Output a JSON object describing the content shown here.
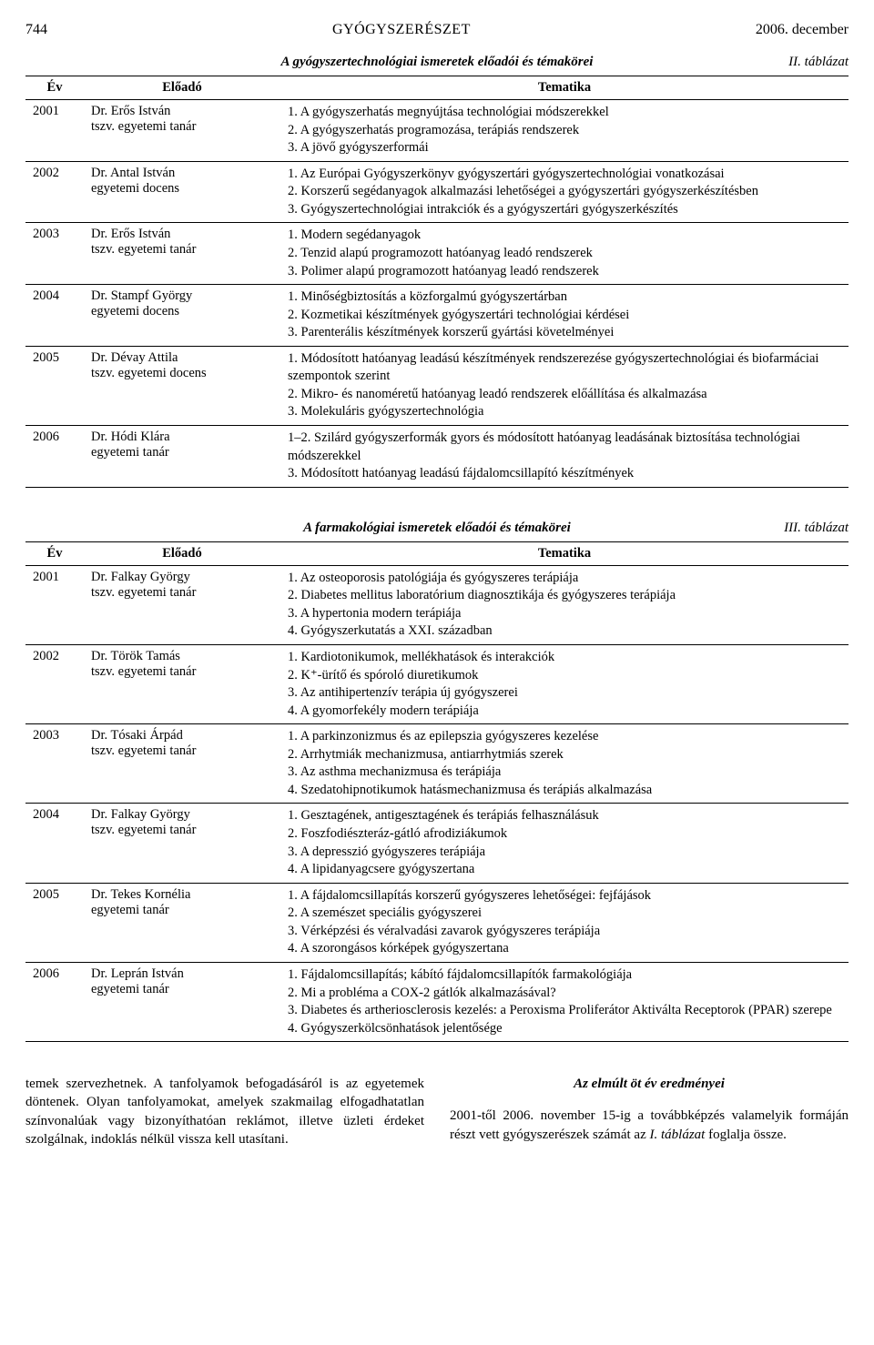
{
  "header": {
    "page_left": "744",
    "journal": "GYÓGYSZERÉSZET",
    "date": "2006. december"
  },
  "table2": {
    "label": "II. táblázat",
    "caption": "A gyógyszertechnológiai ismeretek előadói és témakörei",
    "headers": {
      "year": "Év",
      "presenter": "Előadó",
      "topic": "Tematika"
    },
    "rows": [
      {
        "year": "2001",
        "presenter": "Dr. Erős István\ntszv. egyetemi tanár",
        "topic": "1. A gyógyszerhatás megnyújtása technológiai módszerekkel\n2. A gyógyszerhatás programozása, terápiás rendszerek\n3. A jövő gyógyszerformái"
      },
      {
        "year": "2002",
        "presenter": "Dr. Antal István\negyetemi docens",
        "topic": "1. Az Európai Gyógyszerkönyv gyógyszertári gyógyszertechnológiai vonatkozásai\n2. Korszerű segédanyagok alkalmazási lehetőségei a gyógyszertári gyógyszerkészítésben\n3. Gyógyszertechnológiai intrakciók és a gyógyszertári gyógyszerkészítés"
      },
      {
        "year": "2003",
        "presenter": "Dr. Erős István\ntszv. egyetemi tanár",
        "topic": "1. Modern segédanyagok\n2. Tenzid alapú programozott hatóanyag leadó rendszerek\n3. Polimer alapú programozott hatóanyag leadó rendszerek"
      },
      {
        "year": "2004",
        "presenter": "Dr. Stampf György\negyetemi docens",
        "topic": "1. Minőségbiztosítás a közforgalmú gyógyszertárban\n2. Kozmetikai készítmények gyógyszertári technológiai kérdései\n3. Parenterális készítmények korszerű gyártási követelményei"
      },
      {
        "year": "2005",
        "presenter": "Dr. Dévay Attila\ntszv. egyetemi docens",
        "topic": "1. Módosított hatóanyag leadású készítmények rendszerezése gyógyszertechnológiai és biofarmáciai szempontok szerint\n2. Mikro- és nanoméretű hatóanyag leadó rendszerek előállítása és alkalmazása\n3. Molekuláris gyógyszertechnológia"
      },
      {
        "year": "2006",
        "presenter": "Dr. Hódi Klára\negyetemi tanár",
        "topic": "1–2. Szilárd gyógyszerformák gyors és módosított hatóanyag leadásának biztosítása technológiai módszerekkel\n3. Módosított hatóanyag leadású fájdalomcsillapító készítmények"
      }
    ]
  },
  "table3": {
    "label": "III. táblázat",
    "caption": "A farmakológiai ismeretek előadói és témakörei",
    "headers": {
      "year": "Év",
      "presenter": "Előadó",
      "topic": "Tematika"
    },
    "rows": [
      {
        "year": "2001",
        "presenter": "Dr. Falkay György\ntszv. egyetemi tanár",
        "topic": "1. Az osteoporosis patológiája és gyógyszeres terápiája\n2. Diabetes mellitus laboratórium diagnosztikája és gyógyszeres terápiája\n3. A hypertonia modern terápiája\n4. Gyógyszerkutatás a XXI. században"
      },
      {
        "year": "2002",
        "presenter": "Dr. Török Tamás\ntszv. egyetemi tanár",
        "topic": "1. Kardiotonikumok, mellékhatások és interakciók\n2. K⁺-ürítő és spóroló diuretikumok\n3. Az antihipertenzív terápia új gyógyszerei\n4. A gyomorfekély modern terápiája"
      },
      {
        "year": "2003",
        "presenter": "Dr. Tósaki Árpád\ntszv. egyetemi tanár",
        "topic": "1. A parkinzonizmus és az epilepszia gyógyszeres kezelése\n2. Arrhytmiák mechanizmusa, antiarrhytmiás szerek\n3. Az asthma mechanizmusa és terápiája\n4. Szedatohipnotikumok hatásmechanizmusa és terápiás alkalmazása"
      },
      {
        "year": "2004",
        "presenter": "Dr. Falkay György\ntszv. egyetemi tanár",
        "topic": "1. Gesztagének, antigesztagének és terápiás felhasználásuk\n2. Foszfodiészteráz-gátló afrodiziákumok\n3. A depresszió gyógyszeres terápiája\n4. A lipidanyagcsere gyógyszertana"
      },
      {
        "year": "2005",
        "presenter": "Dr. Tekes Kornélia\negyetemi tanár",
        "topic": "1. A fájdalomcsillapítás korszerű gyógyszeres lehetőségei: fejfájások\n2. A szemészet speciális gyógyszerei\n3. Vérképzési és véralvadási zavarok gyógyszeres terápiája\n4. A szorongásos kórképek gyógyszertana"
      },
      {
        "year": "2006",
        "presenter": "Dr. Leprán István\negyetemi tanár",
        "topic": "1. Fájdalomcsillapítás; kábító fájdalomcsillapítók farmakológiája\n2. Mi a probléma a COX-2 gátlók alkalmazásával?\n3. Diabetes és artheriosclerosis kezelés: a Peroxisma Proliferátor Aktiválta Receptorok (PPAR) szerepe\n4. Gyógyszerkölcsönhatások jelentősége"
      }
    ]
  },
  "body": {
    "left": "temek szervezhetnek. A tanfolyamok befogadásáról is az egyetemek döntenek. Olyan tanfolyamokat, amelyek szakmailag elfogadhatatlan színvonalúak vagy bizonyíthatóan reklámot, illetve üzleti érdeket szolgálnak, indoklás nélkül vissza kell utasítani.",
    "right_title": "Az elmúlt öt év eredményei",
    "right_para_prefix": "2001-től 2006. november 15-ig a továbbképzés valamelyik formáján részt vett gyógyszerészek számát az ",
    "right_para_italic": "I. táblázat",
    "right_para_suffix": " foglalja össze."
  }
}
